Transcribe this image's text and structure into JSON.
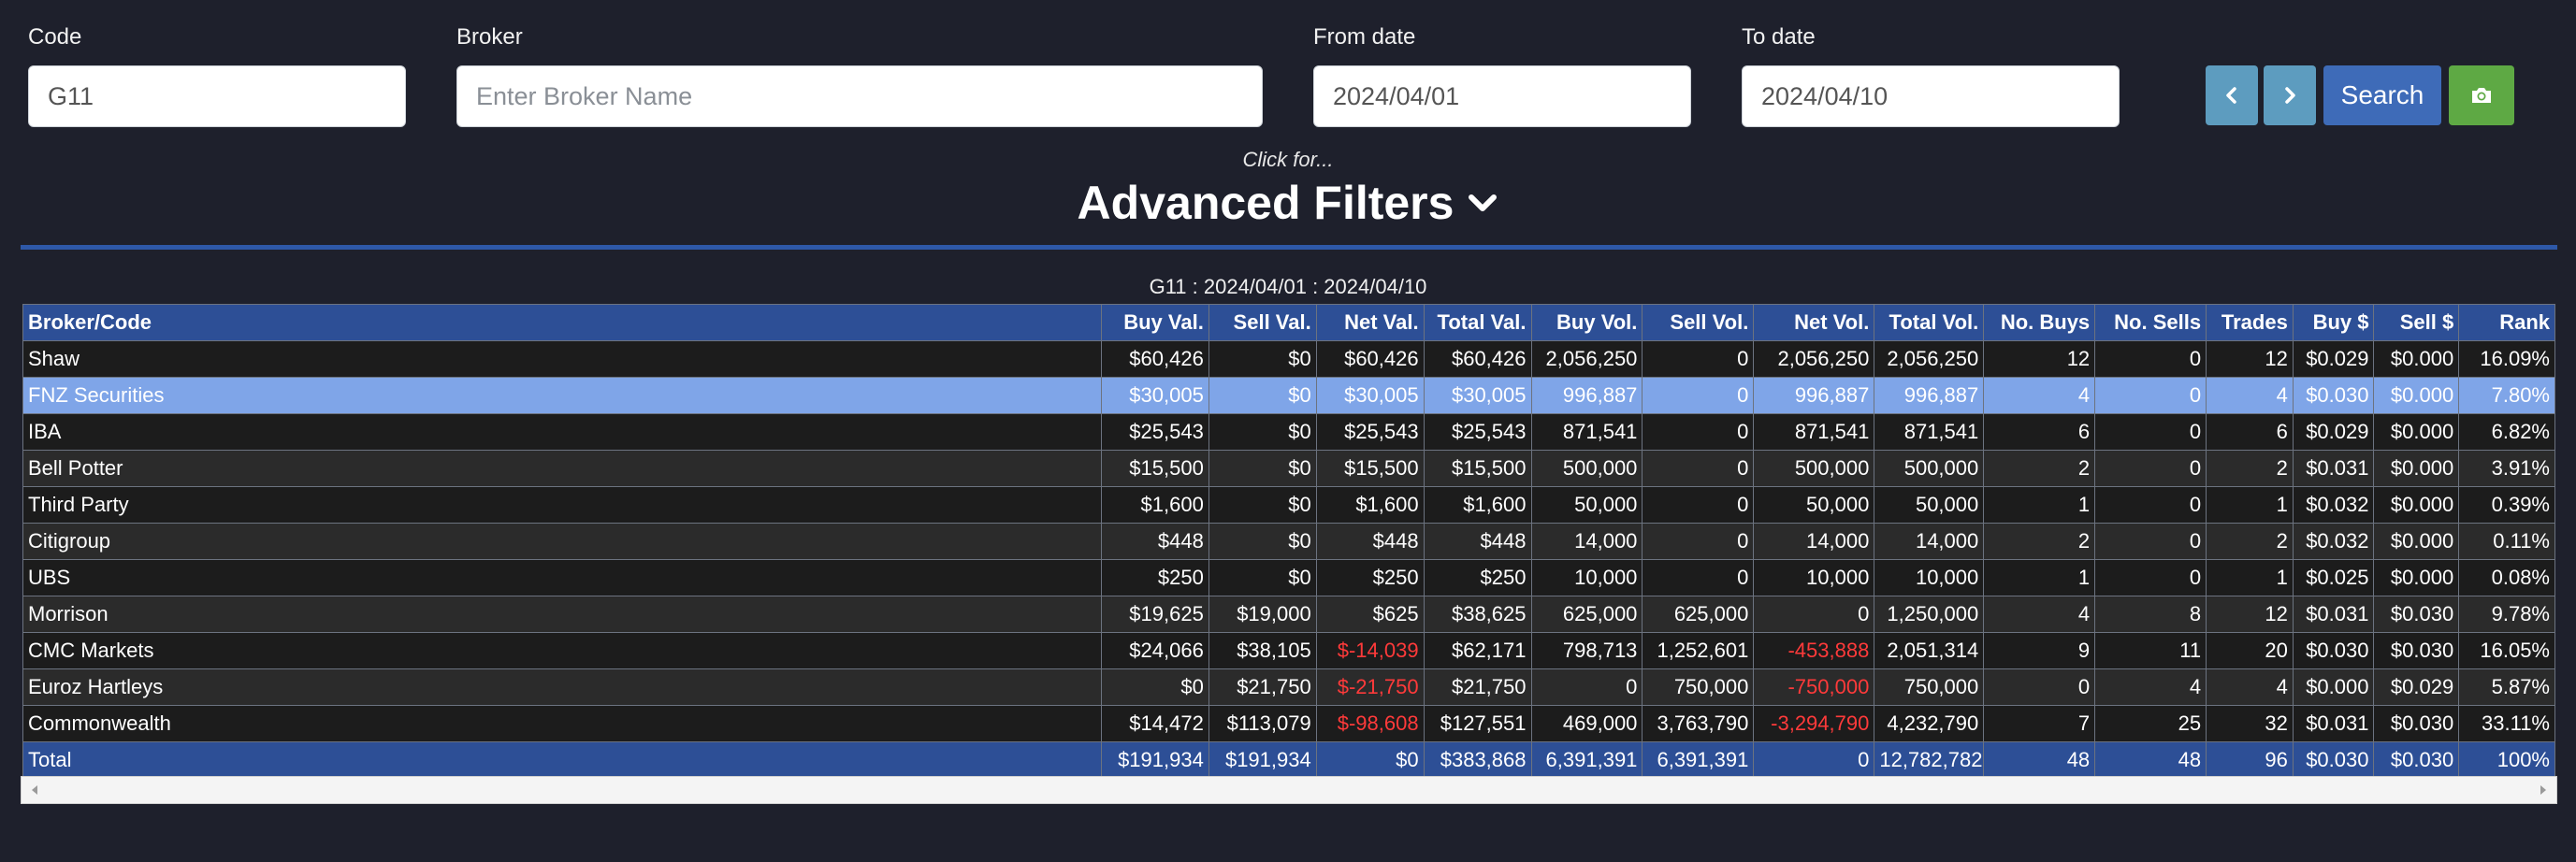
{
  "filters": {
    "code": {
      "label": "Code",
      "value": "G11"
    },
    "broker": {
      "label": "Broker",
      "placeholder": "Enter Broker Name",
      "value": ""
    },
    "from_date": {
      "label": "From date",
      "value": "2024/04/01"
    },
    "to_date": {
      "label": "To date",
      "value": "2024/04/10"
    }
  },
  "toolbar": {
    "prev_icon": "chevron-left-icon",
    "next_icon": "chevron-right-icon",
    "search_label": "Search",
    "camera_icon": "camera-icon"
  },
  "advanced": {
    "hint": "Click for...",
    "title": "Advanced Filters",
    "icon": "chevron-down-icon"
  },
  "caption": "G11 : 2024/04/01 : 2024/04/10",
  "colors": {
    "background": "#1e202c",
    "header": "#2d4f96",
    "selected_row": "#7fa5e8",
    "negative": "#ff3a3a",
    "search_button": "#3e6bb8",
    "camera_button": "#5ea944",
    "nav_button": "#5d9cbf"
  },
  "table": {
    "headers": [
      "Broker/Code",
      "Buy Val.",
      "Sell Val.",
      "Net Val.",
      "Total Val.",
      "Buy Vol.",
      "Sell Vol.",
      "Net Vol.",
      "Total Vol.",
      "No. Buys",
      "No. Sells",
      "Trades",
      "Buy $",
      "Sell $",
      "Rank"
    ],
    "rows": [
      [
        "Shaw",
        "$60,426",
        "$0",
        "$60,426",
        "$60,426",
        "2,056,250",
        "0",
        "2,056,250",
        "2,056,250",
        "12",
        "0",
        "12",
        "$0.029",
        "$0.000",
        "16.09%"
      ],
      [
        "FNZ Securities",
        "$30,005",
        "$0",
        "$30,005",
        "$30,005",
        "996,887",
        "0",
        "996,887",
        "996,887",
        "4",
        "0",
        "4",
        "$0.030",
        "$0.000",
        "7.80%"
      ],
      [
        "IBA",
        "$25,543",
        "$0",
        "$25,543",
        "$25,543",
        "871,541",
        "0",
        "871,541",
        "871,541",
        "6",
        "0",
        "6",
        "$0.029",
        "$0.000",
        "6.82%"
      ],
      [
        "Bell Potter",
        "$15,500",
        "$0",
        "$15,500",
        "$15,500",
        "500,000",
        "0",
        "500,000",
        "500,000",
        "2",
        "0",
        "2",
        "$0.031",
        "$0.000",
        "3.91%"
      ],
      [
        "Third Party",
        "$1,600",
        "$0",
        "$1,600",
        "$1,600",
        "50,000",
        "0",
        "50,000",
        "50,000",
        "1",
        "0",
        "1",
        "$0.032",
        "$0.000",
        "0.39%"
      ],
      [
        "Citigroup",
        "$448",
        "$0",
        "$448",
        "$448",
        "14,000",
        "0",
        "14,000",
        "14,000",
        "2",
        "0",
        "2",
        "$0.032",
        "$0.000",
        "0.11%"
      ],
      [
        "UBS",
        "$250",
        "$0",
        "$250",
        "$250",
        "10,000",
        "0",
        "10,000",
        "10,000",
        "1",
        "0",
        "1",
        "$0.025",
        "$0.000",
        "0.08%"
      ],
      [
        "Morrison",
        "$19,625",
        "$19,000",
        "$625",
        "$38,625",
        "625,000",
        "625,000",
        "0",
        "1,250,000",
        "4",
        "8",
        "12",
        "$0.031",
        "$0.030",
        "9.78%"
      ],
      [
        "CMC Markets",
        "$24,066",
        "$38,105",
        "$-14,039",
        "$62,171",
        "798,713",
        "1,252,601",
        "-453,888",
        "2,051,314",
        "9",
        "11",
        "20",
        "$0.030",
        "$0.030",
        "16.05%"
      ],
      [
        "Euroz Hartleys",
        "$0",
        "$21,750",
        "$-21,750",
        "$21,750",
        "0",
        "750,000",
        "-750,000",
        "750,000",
        "0",
        "4",
        "4",
        "$0.000",
        "$0.029",
        "5.87%"
      ],
      [
        "Commonwealth",
        "$14,472",
        "$113,079",
        "$-98,608",
        "$127,551",
        "469,000",
        "3,763,790",
        "-3,294,790",
        "4,232,790",
        "7",
        "25",
        "32",
        "$0.031",
        "$0.030",
        "33.11%"
      ]
    ],
    "total": [
      "Total",
      "$191,934",
      "$191,934",
      "$0",
      "$383,868",
      "6,391,391",
      "6,391,391",
      "0",
      "12,782,782",
      "48",
      "48",
      "96",
      "$0.030",
      "$0.030",
      "100%"
    ],
    "selected_row_index": 1
  },
  "scrollbar": {
    "left_icon": "scroll-left-icon",
    "right_icon": "scroll-right-icon"
  }
}
